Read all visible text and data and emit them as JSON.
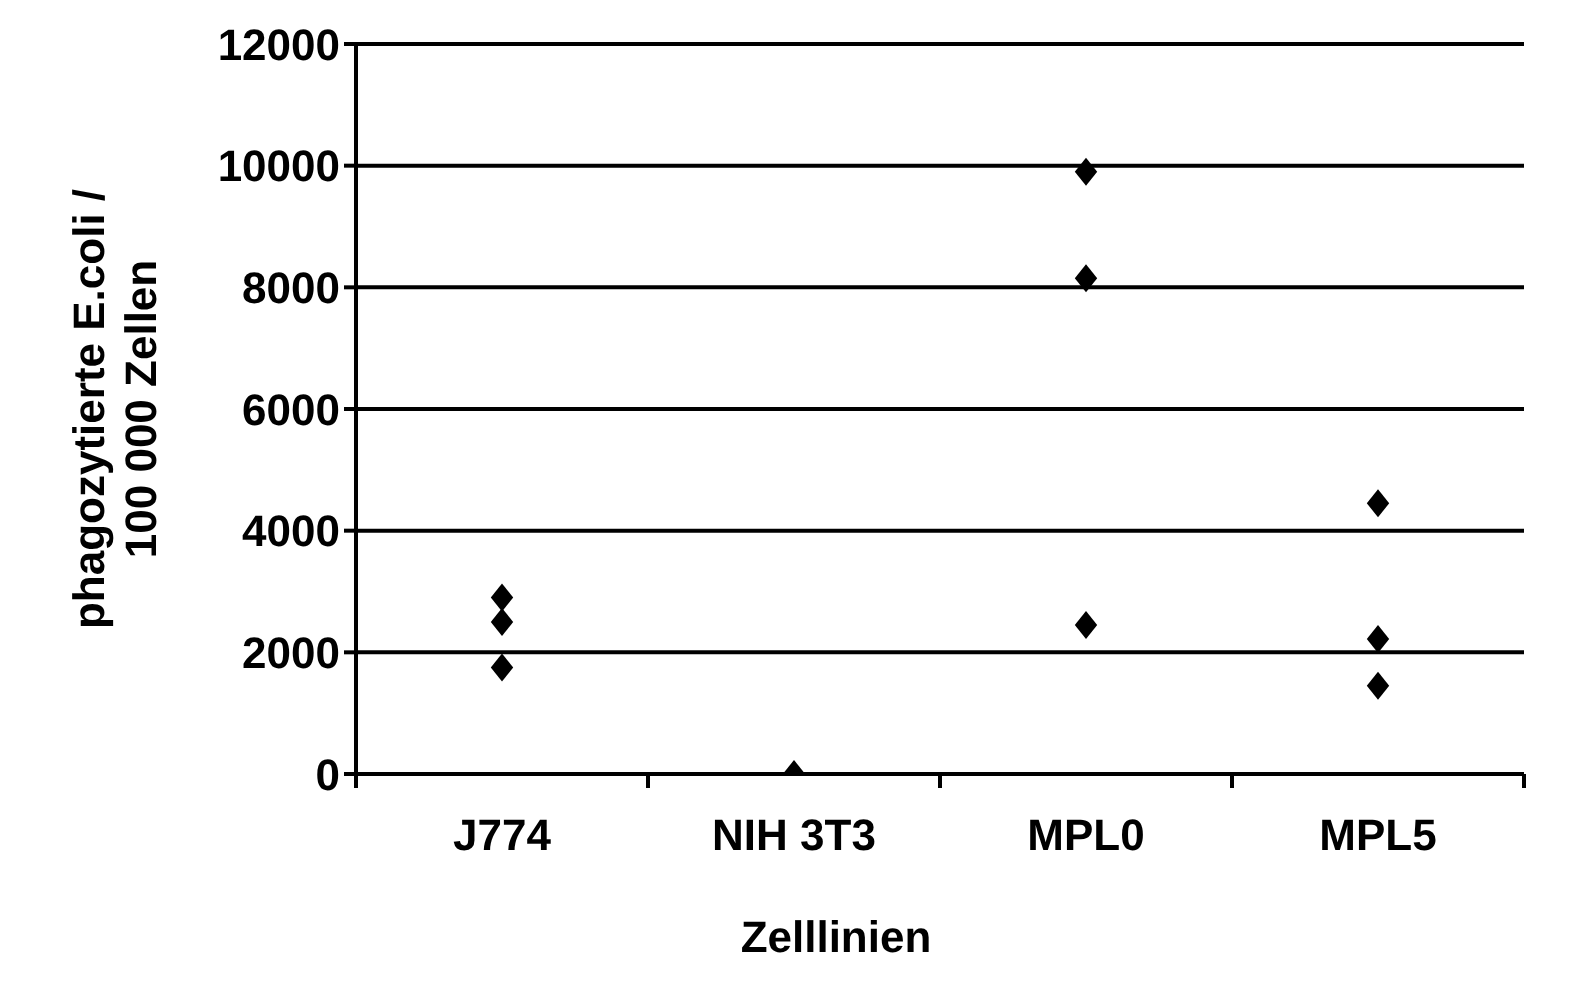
{
  "chart_data": {
    "type": "scatter",
    "xlabel": "Zelllinien",
    "ylabel": "phagozytierte E.coli /\n100 000 Zellen",
    "categories": [
      "J774",
      "NIH 3T3",
      "MPL0",
      "MPL5"
    ],
    "series": [
      {
        "color": "#000000",
        "x": [
          "J774",
          "J774",
          "J774",
          "NIH 3T3",
          "MPL0",
          "MPL0",
          "MPL0",
          "MPL5",
          "MPL5",
          "MPL5"
        ],
        "values": [
          2900,
          2500,
          1750,
          0,
          9900,
          8150,
          2450,
          4450,
          2220,
          1450
        ]
      }
    ],
    "ylim": [
      0,
      12000
    ],
    "yticks": [
      0,
      2000,
      4000,
      6000,
      8000,
      10000,
      12000
    ],
    "grid": "y",
    "marker": "diamond"
  }
}
